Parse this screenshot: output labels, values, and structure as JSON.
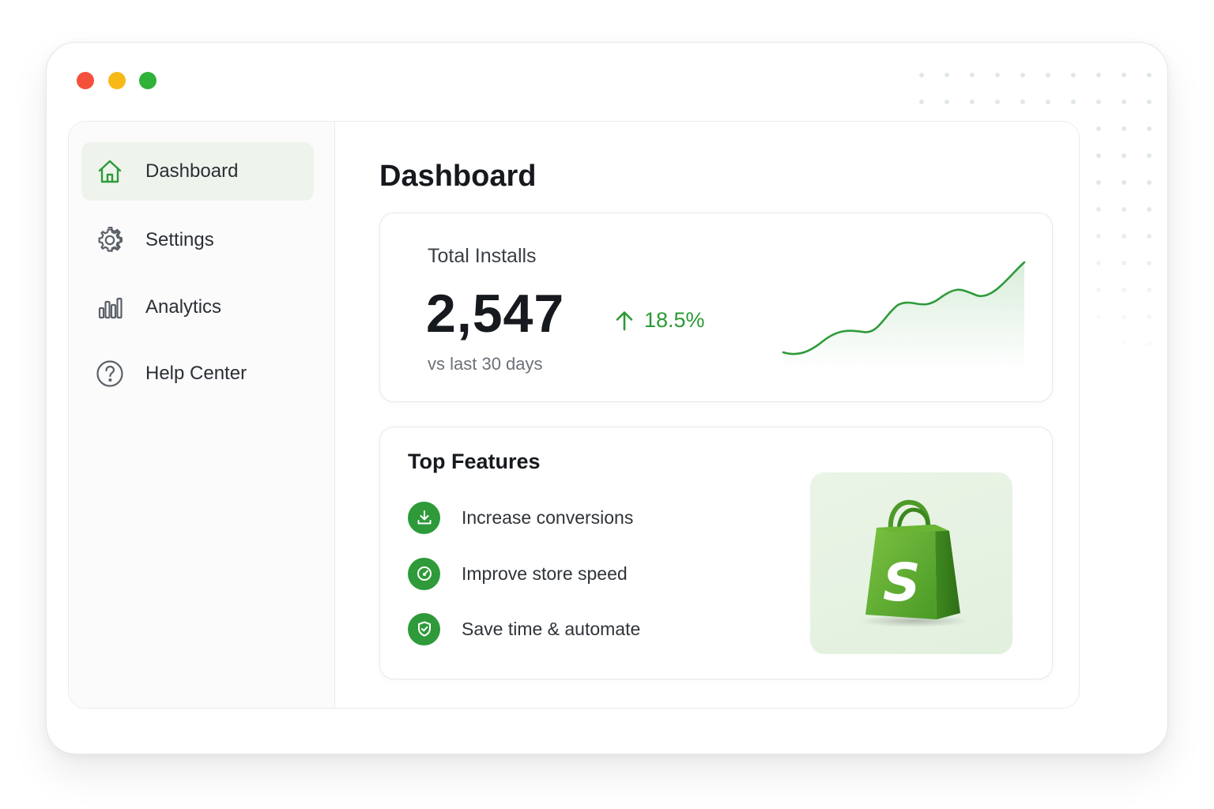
{
  "window": {
    "controls": [
      "close",
      "minimize",
      "maximize"
    ]
  },
  "sidebar": {
    "items": [
      {
        "label": "Dashboard",
        "icon": "home-icon",
        "active": true
      },
      {
        "label": "Settings",
        "icon": "gear-icon",
        "active": false
      },
      {
        "label": "Analytics",
        "icon": "bar-chart-icon",
        "active": false
      },
      {
        "label": "Help Center",
        "icon": "help-circle-icon",
        "active": false
      }
    ]
  },
  "main": {
    "title": "Dashboard",
    "installs": {
      "label": "Total Installs",
      "value": "2,547",
      "change": "18.5%",
      "change_icon": "arrow-up-icon",
      "period": "vs last 30 days"
    },
    "features": {
      "title": "Top Features",
      "items": [
        {
          "label": "Increase conversions",
          "icon": "download-icon"
        },
        {
          "label": "Improve store speed",
          "icon": "speedometer-icon"
        },
        {
          "label": "Save time & automate",
          "icon": "shield-check-icon"
        }
      ],
      "image": "shopping-bag-logo"
    }
  },
  "colors": {
    "accent": "#2e9a3a",
    "trend_up": "#2a9a35",
    "active_nav_bg": "#eef4ec",
    "close": "#f5503b",
    "minimize": "#f7b918",
    "maximize": "#2fb13a"
  }
}
